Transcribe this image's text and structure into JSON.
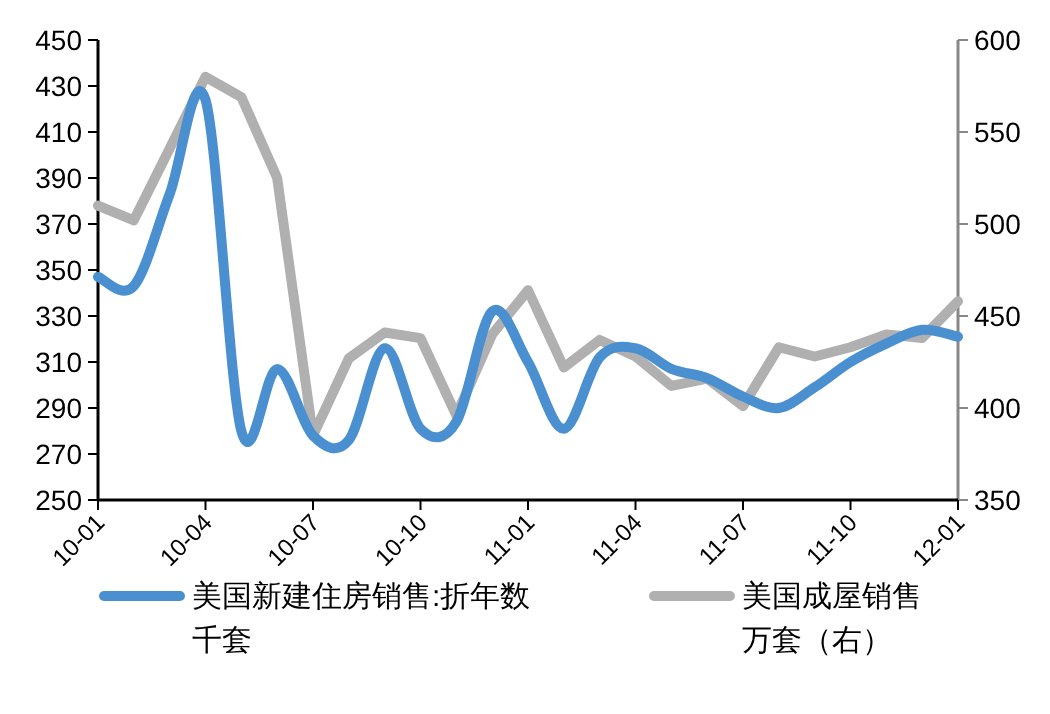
{
  "chart_data": {
    "type": "line",
    "categories": [
      "10-01",
      null,
      null,
      "10-04",
      null,
      null,
      "10-07",
      null,
      null,
      "10-10",
      null,
      null,
      "11-01",
      null,
      null,
      "11-04",
      null,
      null,
      "11-07",
      null,
      null,
      "11-10",
      null,
      null,
      "12-01"
    ],
    "series": [
      {
        "name": "美国新建住房销售:折年数千套",
        "color": "#4a90d0",
        "values": [
          347,
          343,
          383,
          424,
          280,
          307,
          278,
          276,
          316,
          281,
          284,
          332,
          310,
          281,
          312,
          316,
          307,
          303,
          295,
          290,
          299,
          310,
          318,
          324,
          321
        ]
      },
      {
        "name": "美国成屋销售万套（右）",
        "color": "#b0b0b0",
        "axis": "y2",
        "values": [
          510,
          502,
          541,
          580,
          569,
          525,
          385,
          427,
          441,
          438,
          396,
          440,
          464,
          422,
          437,
          428,
          412,
          416,
          401,
          433,
          428,
          433,
          440,
          438,
          458
        ]
      }
    ],
    "ylim": [
      250,
      450
    ],
    "yticks": [
      250,
      270,
      290,
      310,
      330,
      350,
      370,
      390,
      410,
      430,
      450
    ],
    "y2lim": [
      350,
      600
    ],
    "y2ticks": [
      350,
      400,
      450,
      500,
      550,
      600
    ],
    "grid": false,
    "legend": "bottom",
    "marker": "none",
    "line_style": "solid"
  }
}
